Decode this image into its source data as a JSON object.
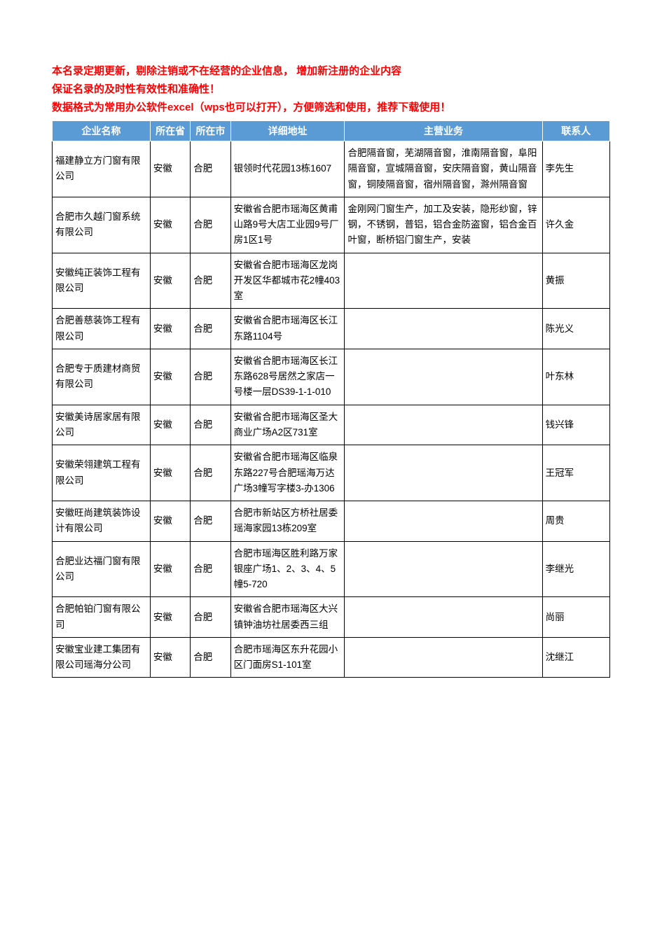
{
  "intro": {
    "line1": "本名录定期更新，剔除注销或不在经营的企业信息， 增加新注册的企业内容",
    "line2": "保证名录的及时性有效性和准确性！",
    "line3": "数据格式为常用办公软件excel（wps也可以打开），方便筛选和使用，推荐下载使用！"
  },
  "table": {
    "columns": [
      "企业名称",
      "所在省",
      "所在市",
      "详细地址",
      "主营业务",
      "联系人"
    ],
    "rows": [
      {
        "name": "福建静立方门窗有限公司",
        "province": "安徽",
        "city": "合肥",
        "address": "银领时代花园13栋1607",
        "business": "合肥隔音窗，芜湖隔音窗，淮南隔音窗，阜阳隔音窗，宣城隔音窗，安庆隔音窗，黄山隔音窗，铜陵隔音窗，宿州隔音窗，滁州隔音窗",
        "contact": "李先生"
      },
      {
        "name": "合肥市久越门窗系统有限公司",
        "province": "安徽",
        "city": "合肥",
        "address": "安徽省合肥市瑶海区黄甫山路9号大店工业园9号厂房1区1号",
        "business": "金刚网门窗生产，加工及安装，隐形纱窗，锌钢，不锈钢，普铝，铝合金防盗窗，铝合金百叶窗，断桥铝门窗生产，安装",
        "contact": "许久金"
      },
      {
        "name": "安徽纯正装饰工程有限公司",
        "province": "安徽",
        "city": "合肥",
        "address": "安徽省合肥市瑶海区龙岗开发区华都城市花2幢403室",
        "business": "",
        "contact": "黄振"
      },
      {
        "name": "合肥善慈装饰工程有限公司",
        "province": "安徽",
        "city": "合肥",
        "address": "安徽省合肥市瑶海区长江东路1104号",
        "business": "",
        "contact": "陈光义"
      },
      {
        "name": "合肥专于质建材商贸有限公司",
        "province": "安徽",
        "city": "合肥",
        "address": "安徽省合肥市瑶海区长江东路628号居然之家店一号楼一层DS39-1-1-010",
        "business": "",
        "contact": "叶东林"
      },
      {
        "name": "安徽美诗居家居有限公司",
        "province": "安徽",
        "city": "合肥",
        "address": "安徽省合肥市瑶海区圣大商业广场A2区731室",
        "business": "",
        "contact": "钱兴锋"
      },
      {
        "name": "安徽荣翎建筑工程有限公司",
        "province": "安徽",
        "city": "合肥",
        "address": "安徽省合肥市瑶海区临泉东路227号合肥瑶海万达广场3幢写字楼3-办1306",
        "business": "",
        "contact": "王冠军"
      },
      {
        "name": "安徽旺尚建筑装饰设计有限公司",
        "province": "安徽",
        "city": "合肥",
        "address": "合肥市新站区方桥社居委瑶海家园13栋209室",
        "business": "",
        "contact": "周贵"
      },
      {
        "name": "合肥业达福门窗有限公司",
        "province": "安徽",
        "city": "合肥",
        "address": "合肥市瑶海区胜利路万家银座广场1、2、3、4、5幢5-720",
        "business": "",
        "contact": "李继光"
      },
      {
        "name": "合肥帕铂门窗有限公司",
        "province": "安徽",
        "city": "合肥",
        "address": "安徽省合肥市瑶海区大兴镇钟油坊社居委西三组",
        "business": "",
        "contact": "尚丽"
      },
      {
        "name": "安徽宝业建工集团有限公司瑶海分公司",
        "province": "安徽",
        "city": "合肥",
        "address": "合肥市瑶海区东升花园小区门面房S1-101室",
        "business": "",
        "contact": "沈继江"
      }
    ]
  },
  "colors": {
    "header_bg": "#5b9bd5",
    "header_text": "#ffffff",
    "intro_red": "#ff0000",
    "border": "#000000"
  }
}
